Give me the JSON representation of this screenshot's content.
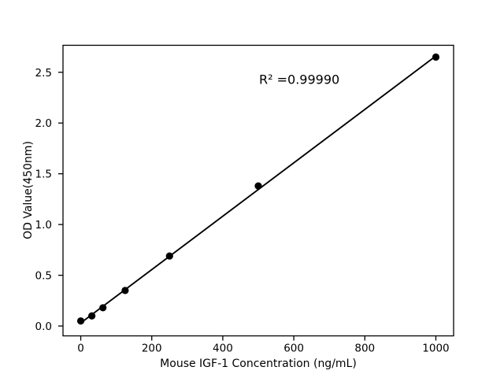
{
  "figure": {
    "background": "#ffffff",
    "foreground": "#000000"
  },
  "chart_data": {
    "type": "scatter",
    "title": "",
    "xlabel": "Mouse IGF-1 Concentration (ng/mL)",
    "ylabel": "OD Value(450nm)",
    "annotation": "R² =0.99990",
    "x": [
      0,
      31.25,
      62.5,
      125,
      250,
      500,
      1000
    ],
    "y": [
      0.05,
      0.1,
      0.18,
      0.35,
      0.69,
      1.38,
      2.65
    ],
    "trendline": {
      "x": [
        0,
        1000
      ],
      "y": [
        0.03,
        2.66
      ]
    },
    "xticks": [
      0,
      200,
      400,
      600,
      800,
      1000
    ],
    "xtick_labels": [
      "0",
      "200",
      "400",
      "600",
      "800",
      "1000"
    ],
    "ytick_values": [
      0,
      0.5,
      1.0,
      1.5,
      2.0,
      2.5
    ],
    "ytick_labels": [
      "0.0",
      "0.5",
      "1.0",
      "1.5",
      "2.0",
      "2.5"
    ],
    "xlim": [
      -50,
      1050
    ],
    "ylim": [
      -0.097,
      2.766
    ],
    "grid": false,
    "legend_position": "none",
    "marker_color": "#000000",
    "line_color": "#000000",
    "axis_color": "#000000"
  }
}
